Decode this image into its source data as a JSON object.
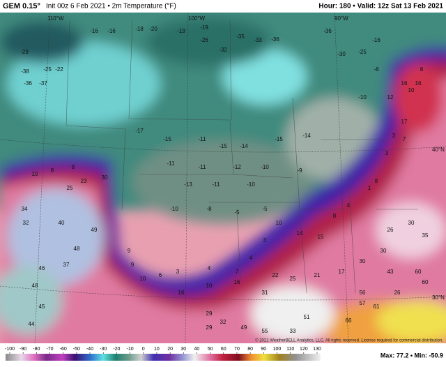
{
  "header": {
    "model": "GEM 0.15°",
    "run": "Init 00z 6 Feb 2021 • 2m Temperature (°F)",
    "valid": "Hour: 180 • Valid: 12z Sat 13 Feb 2021"
  },
  "map": {
    "grid_labels": [
      "110°W",
      "100°W",
      "90°W",
      "40°N",
      "30°N"
    ],
    "copyright": "© 2021 WeatherBELL Analytics, LLC. All rights reserved. License required for commercial distribution.",
    "points": [
      -29,
      -38,
      -36,
      -37,
      -25,
      -22,
      -16,
      -16,
      -18,
      -20,
      -19,
      -19,
      -26,
      -32,
      -35,
      -33,
      -36,
      -36,
      -30,
      -25,
      -16,
      -17,
      -15,
      -11,
      -15,
      -14,
      -15,
      -14,
      -11,
      -11,
      -12,
      -10,
      -9,
      -13,
      -11,
      -10,
      -10,
      -8,
      -5,
      -5,
      10,
      8,
      8,
      25,
      23,
      30,
      34,
      32,
      40,
      49,
      48,
      37,
      46,
      48,
      45,
      44,
      9,
      9,
      10,
      6,
      3,
      4,
      7,
      4,
      3,
      10,
      14,
      15,
      8,
      4,
      1,
      8,
      3,
      3,
      7,
      17,
      16,
      16,
      12,
      10,
      8,
      -8,
      -10,
      16,
      10,
      16,
      31,
      22,
      25,
      21,
      17,
      30,
      30,
      43,
      60,
      60,
      56,
      57,
      66,
      61,
      51,
      33,
      55,
      49,
      29,
      29,
      32,
      26,
      26,
      30,
      35
    ]
  },
  "legend": {
    "ticks": [
      -100,
      -90,
      -80,
      -70,
      -60,
      -50,
      -40,
      -30,
      -20,
      -10,
      0,
      10,
      20,
      30,
      40,
      50,
      60,
      70,
      80,
      90,
      100,
      110,
      120,
      130
    ],
    "stats": "Max: 77.2 • Min: -50.9"
  }
}
